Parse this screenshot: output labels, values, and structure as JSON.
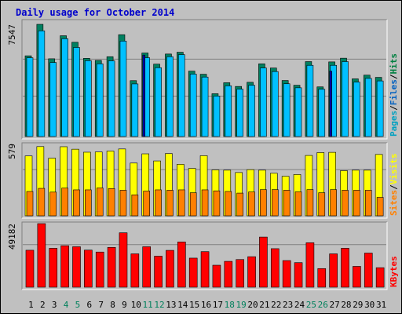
{
  "title": "Daily usage for October 2014",
  "colors": {
    "background": "#c0c0c0",
    "panel": "#c0c0c0",
    "title": "#0000cc",
    "hits": "#008040",
    "files": "#00c0ff",
    "pages": "#00a0c0",
    "visits": "#ffff00",
    "sites": "#ff8000",
    "kbytes": "#ff0000",
    "weekend_label": "#00805c",
    "weekday_label": "#000000"
  },
  "chart_data": [
    {
      "type": "bar",
      "panel": "top",
      "y_max_label": "7547",
      "label_parts": [
        {
          "text": "Pages",
          "color": "#00a0c0"
        },
        {
          "text": "/",
          "color": "#000000"
        },
        {
          "text": "Files",
          "color": "#0060c0"
        },
        {
          "text": "/",
          "color": "#000000"
        },
        {
          "text": "Hits",
          "color": "#008040"
        }
      ],
      "ylim": [
        0,
        7547
      ],
      "series": [
        {
          "name": "Hits",
          "values": [
            5430,
            7547,
            5230,
            6780,
            6340,
            5260,
            5120,
            5370,
            6850,
            3760,
            5620,
            4870,
            5550,
            5670,
            4400,
            4190,
            2880,
            3620,
            3370,
            3650,
            4890,
            4610,
            3770,
            3450,
            5040,
            3340,
            5020,
            5270,
            3880,
            4130,
            3980
          ]
        },
        {
          "name": "Files",
          "values": [
            5300,
            7110,
            4980,
            6580,
            5990,
            5100,
            4890,
            5090,
            6420,
            3540,
            5300,
            4630,
            5370,
            5510,
            4200,
            4000,
            2720,
            3410,
            3190,
            3450,
            4610,
            4370,
            3550,
            3280,
            4790,
            3180,
            4790,
            5040,
            3660,
            3910,
            3740
          ]
        },
        {
          "name": "Pages",
          "values": [
            0,
            0,
            0,
            0,
            0,
            0,
            0,
            0,
            0,
            0,
            5480,
            0,
            0,
            0,
            0,
            0,
            0,
            0,
            0,
            0,
            0,
            0,
            0,
            0,
            0,
            0,
            4400,
            0,
            0,
            0,
            0
          ]
        }
      ]
    },
    {
      "type": "bar",
      "panel": "middle",
      "y_max_label": "579",
      "label_parts": [
        {
          "text": "Sites",
          "color": "#ff8000"
        },
        {
          "text": "/",
          "color": "#000000"
        },
        {
          "text": "Visits",
          "color": "#ffff00"
        }
      ],
      "ylim": [
        0,
        579
      ],
      "series": [
        {
          "name": "Visits",
          "values": [
            480,
            555,
            462,
            554,
            534,
            510,
            512,
            519,
            536,
            423,
            497,
            440,
            499,
            413,
            380,
            482,
            368,
            366,
            347,
            370,
            366,
            341,
            317,
            331,
            484,
            507,
            509,
            362,
            366,
            366,
            492
          ]
        },
        {
          "name": "Sites",
          "values": [
            195,
            220,
            190,
            222,
            208,
            208,
            223,
            218,
            205,
            168,
            198,
            208,
            205,
            208,
            185,
            208,
            200,
            195,
            182,
            191,
            210,
            210,
            205,
            192,
            210,
            185,
            210,
            205,
            205,
            205,
            148
          ]
        }
      ]
    },
    {
      "type": "bar",
      "panel": "bottom",
      "y_max_label": "49182",
      "label_parts": [
        {
          "text": "KBytes",
          "color": "#ff0000"
        }
      ],
      "ylim": [
        0,
        49182
      ],
      "series": [
        {
          "name": "KBytes",
          "values": [
            28600,
            49182,
            30100,
            32100,
            31300,
            28700,
            27200,
            30800,
            42100,
            25800,
            31300,
            24000,
            28500,
            35000,
            22500,
            27500,
            17000,
            20000,
            21400,
            23600,
            38800,
            29800,
            20600,
            19000,
            34400,
            14400,
            25800,
            30100,
            16100,
            26400,
            15100
          ]
        }
      ]
    }
  ],
  "x_labels": [
    {
      "text": "1",
      "weekend": false
    },
    {
      "text": "2",
      "weekend": false
    },
    {
      "text": "3",
      "weekend": false
    },
    {
      "text": "4",
      "weekend": true
    },
    {
      "text": "5",
      "weekend": true
    },
    {
      "text": "6",
      "weekend": false
    },
    {
      "text": "7",
      "weekend": false
    },
    {
      "text": "8",
      "weekend": false
    },
    {
      "text": "9",
      "weekend": false
    },
    {
      "text": "10",
      "weekend": false
    },
    {
      "text": "11",
      "weekend": true
    },
    {
      "text": "12",
      "weekend": true
    },
    {
      "text": "13",
      "weekend": false
    },
    {
      "text": "14",
      "weekend": false
    },
    {
      "text": "15",
      "weekend": false
    },
    {
      "text": "16",
      "weekend": false
    },
    {
      "text": "17",
      "weekend": false
    },
    {
      "text": "18",
      "weekend": true
    },
    {
      "text": "19",
      "weekend": true
    },
    {
      "text": "20",
      "weekend": false
    },
    {
      "text": "21",
      "weekend": false
    },
    {
      "text": "22",
      "weekend": false
    },
    {
      "text": "23",
      "weekend": false
    },
    {
      "text": "24",
      "weekend": false
    },
    {
      "text": "25",
      "weekend": true
    },
    {
      "text": "26",
      "weekend": true
    },
    {
      "text": "27",
      "weekend": false
    },
    {
      "text": "28",
      "weekend": false
    },
    {
      "text": "29",
      "weekend": false
    },
    {
      "text": "30",
      "weekend": false
    },
    {
      "text": "31",
      "weekend": false
    }
  ]
}
